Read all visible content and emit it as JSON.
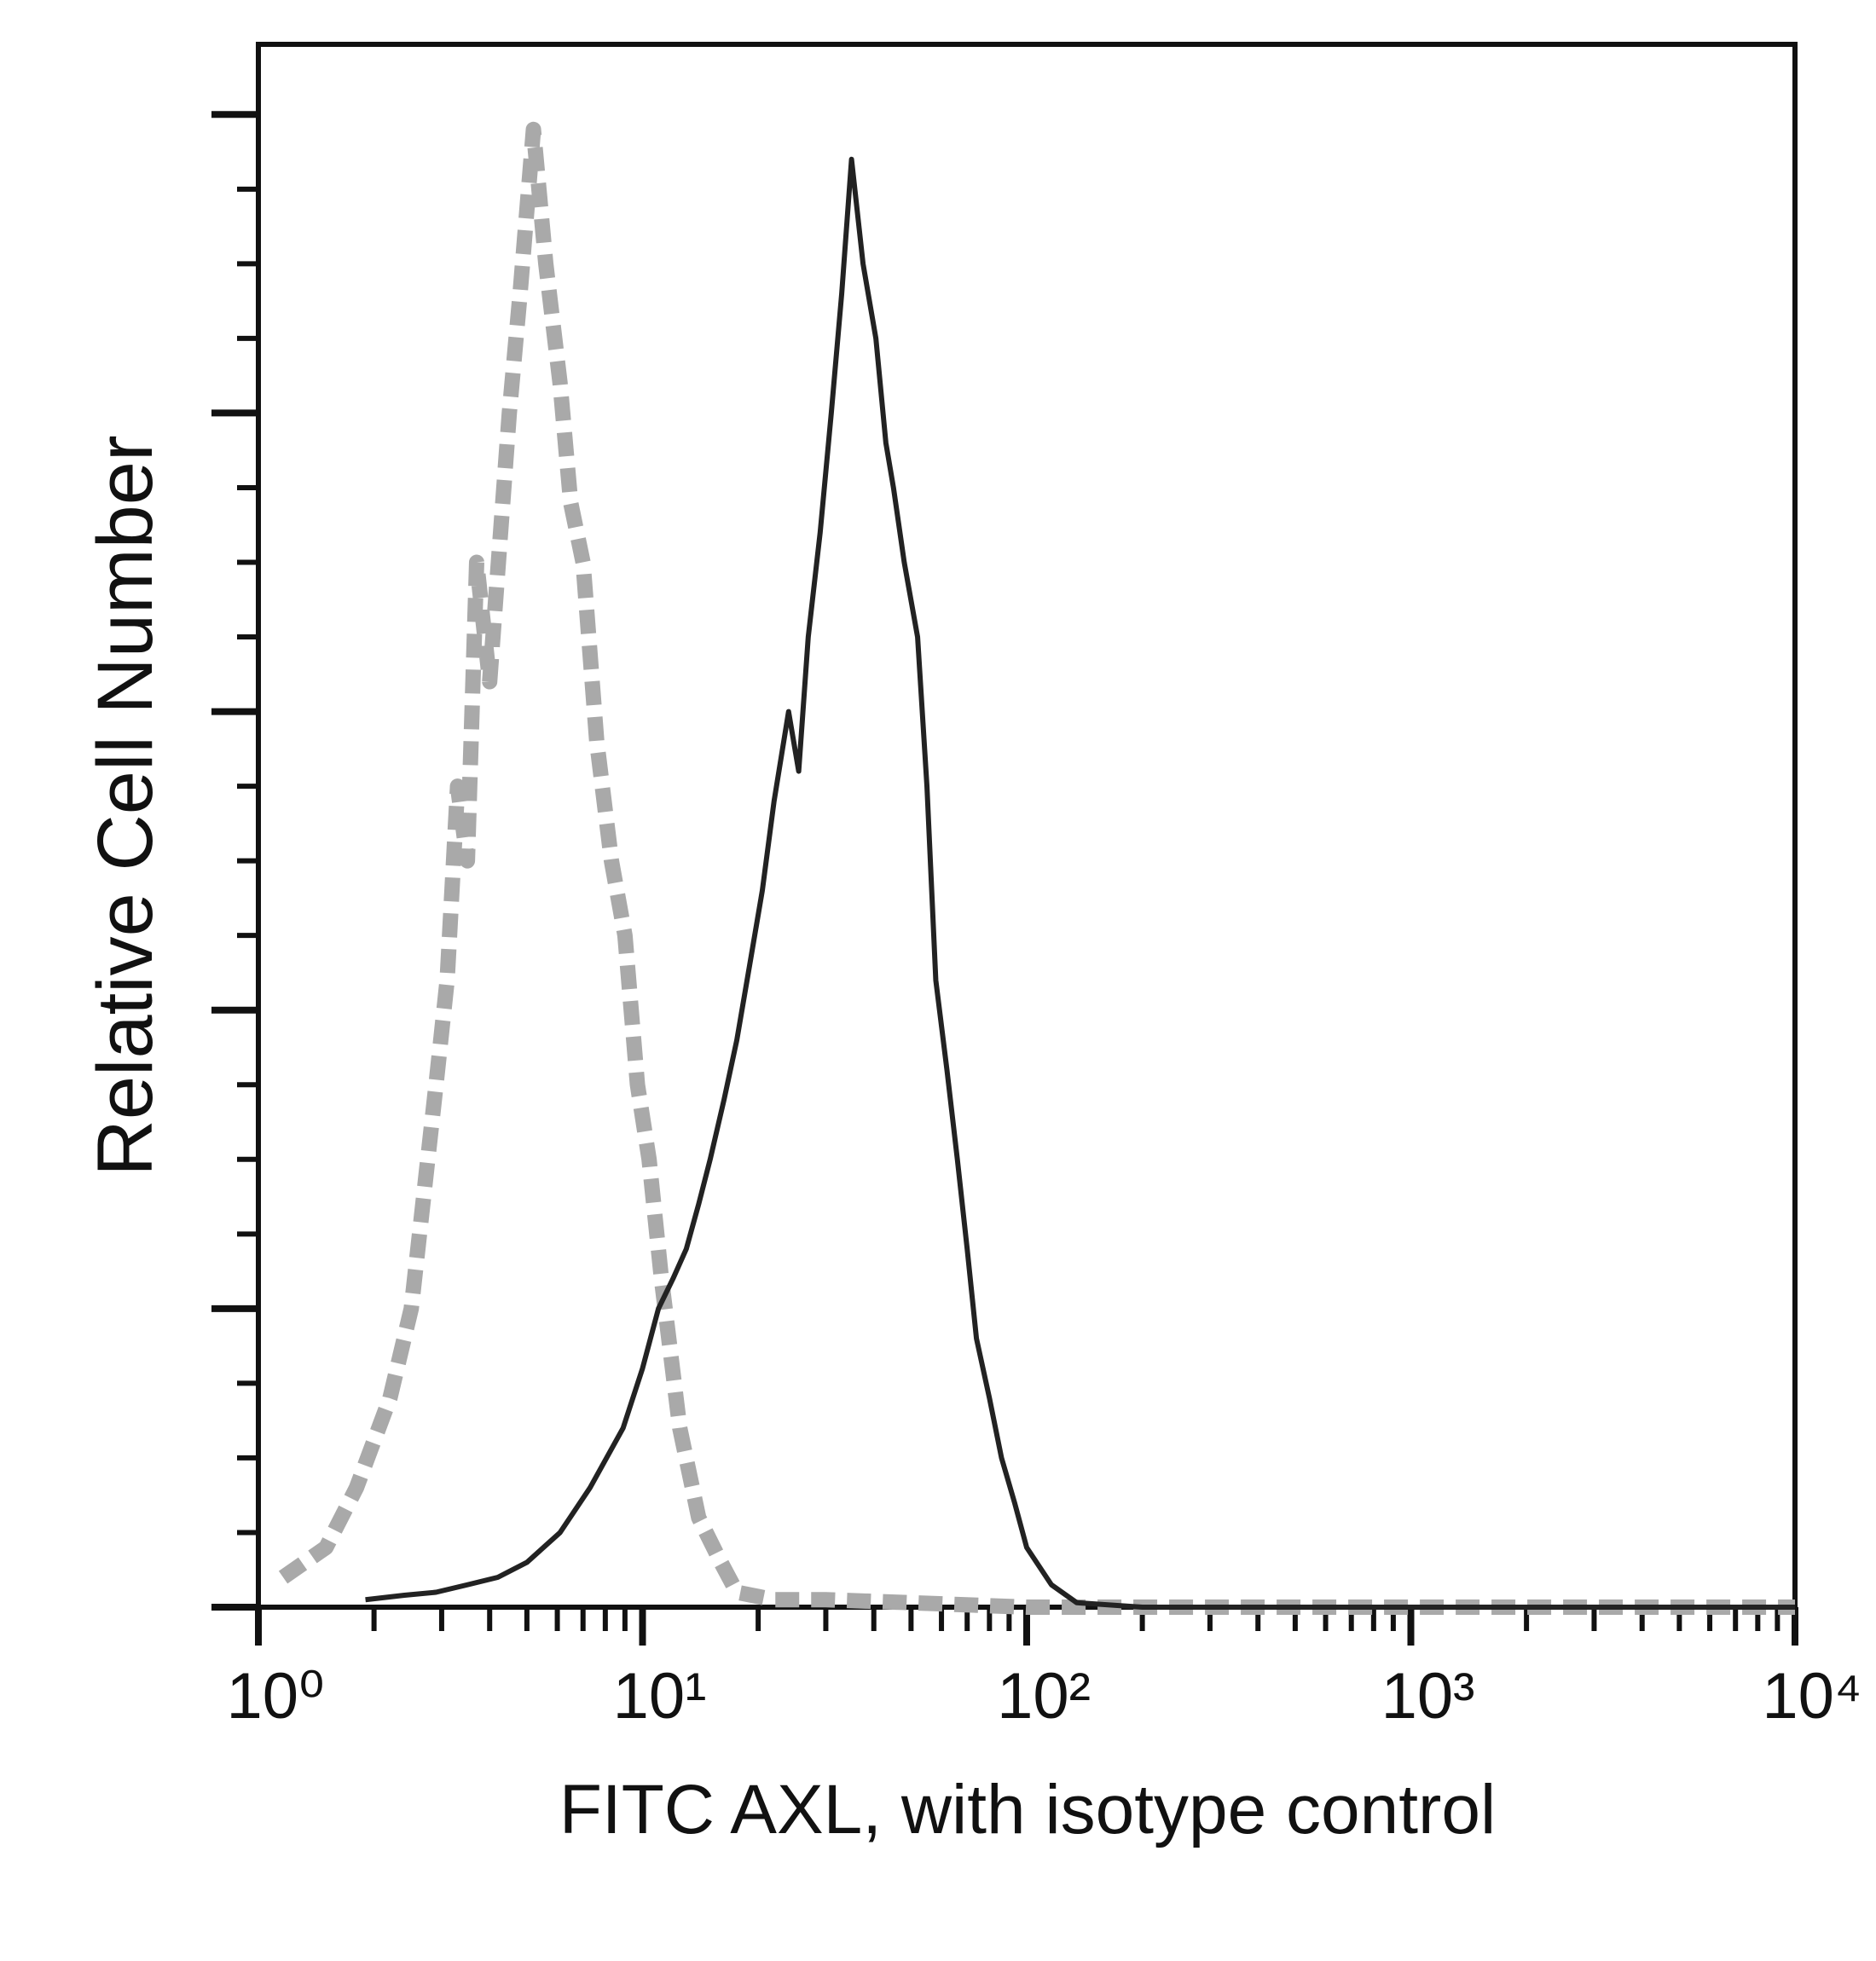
{
  "chart_data": {
    "type": "line",
    "xlabel": "FITC AXL, with isotype control",
    "ylabel": "Relative Cell Number",
    "xscale": "log",
    "xlim": [
      1,
      10000
    ],
    "xticks": [
      {
        "value": 1,
        "label": "10⁰"
      },
      {
        "value": 10,
        "label": "10¹"
      },
      {
        "value": 100,
        "label": "10²"
      },
      {
        "value": 1000,
        "label": "10³"
      },
      {
        "value": 10000,
        "label": "10⁴"
      }
    ],
    "xminor_ticks": [
      2,
      3,
      4,
      5,
      6,
      7,
      8,
      9,
      20,
      30,
      40,
      50,
      60,
      70,
      80,
      90,
      200,
      300,
      400,
      500,
      600,
      700,
      800,
      900,
      2000,
      3000,
      4000,
      5000,
      6000,
      7000,
      8000,
      9000
    ],
    "ylim": [
      0,
      104.7
    ],
    "yticks": [
      0,
      20,
      40,
      60,
      80,
      100
    ],
    "yminor_ticks": [
      5,
      10,
      15,
      25,
      30,
      35,
      45,
      50,
      55,
      65,
      70,
      75,
      85,
      90,
      95
    ],
    "series": [
      {
        "color": "#a9a9a9",
        "style": "dashed",
        "x": [
          1.16,
          1.5,
          1.8,
          2.2,
          2.5,
          2.9,
          3.1,
          3.3,
          3.5,
          3.7,
          4.0,
          4.5,
          4.8,
          5.2,
          5.6,
          6.1,
          6.5,
          7.0,
          7.6,
          8.3,
          9.0,
          9.7,
          10.4,
          11.2,
          12.5,
          14,
          16,
          17.6,
          22,
          30,
          50,
          100,
          1000,
          10000
        ],
        "values": [
          2,
          4,
          8,
          14,
          20,
          35,
          42,
          55,
          50,
          70,
          62,
          80,
          88,
          99,
          90,
          82,
          74,
          70,
          58,
          50,
          45,
          35,
          30,
          22,
          12,
          6,
          3,
          1,
          0.5,
          0.5,
          0.3,
          0,
          0,
          0
        ]
      },
      {
        "color": "#222222",
        "style": "solid",
        "x": [
          1.9,
          2.4,
          2.9,
          3.5,
          4.2,
          5.0,
          6.1,
          7.3,
          8.9,
          10,
          11,
          12,
          13,
          14,
          15,
          16.3,
          17.6,
          19,
          20.5,
          22,
          24,
          25.5,
          27,
          29,
          31,
          33,
          35,
          37.5,
          40.5,
          43,
          45,
          48,
          52,
          55,
          58,
          62,
          66,
          70,
          74,
          80,
          86,
          93,
          100,
          116,
          135,
          200,
          1000,
          10000
        ],
        "values": [
          0.5,
          0.8,
          1,
          1.5,
          2,
          3,
          5,
          8,
          12,
          16,
          20,
          22,
          24,
          27,
          30,
          34,
          38,
          43,
          48,
          54,
          60,
          56,
          65,
          72,
          80,
          88,
          97,
          90,
          85,
          78,
          75,
          70,
          65,
          55,
          42,
          36,
          30,
          24,
          18,
          14,
          10,
          7,
          4,
          1.5,
          0.3,
          0,
          0,
          0
        ]
      }
    ]
  }
}
